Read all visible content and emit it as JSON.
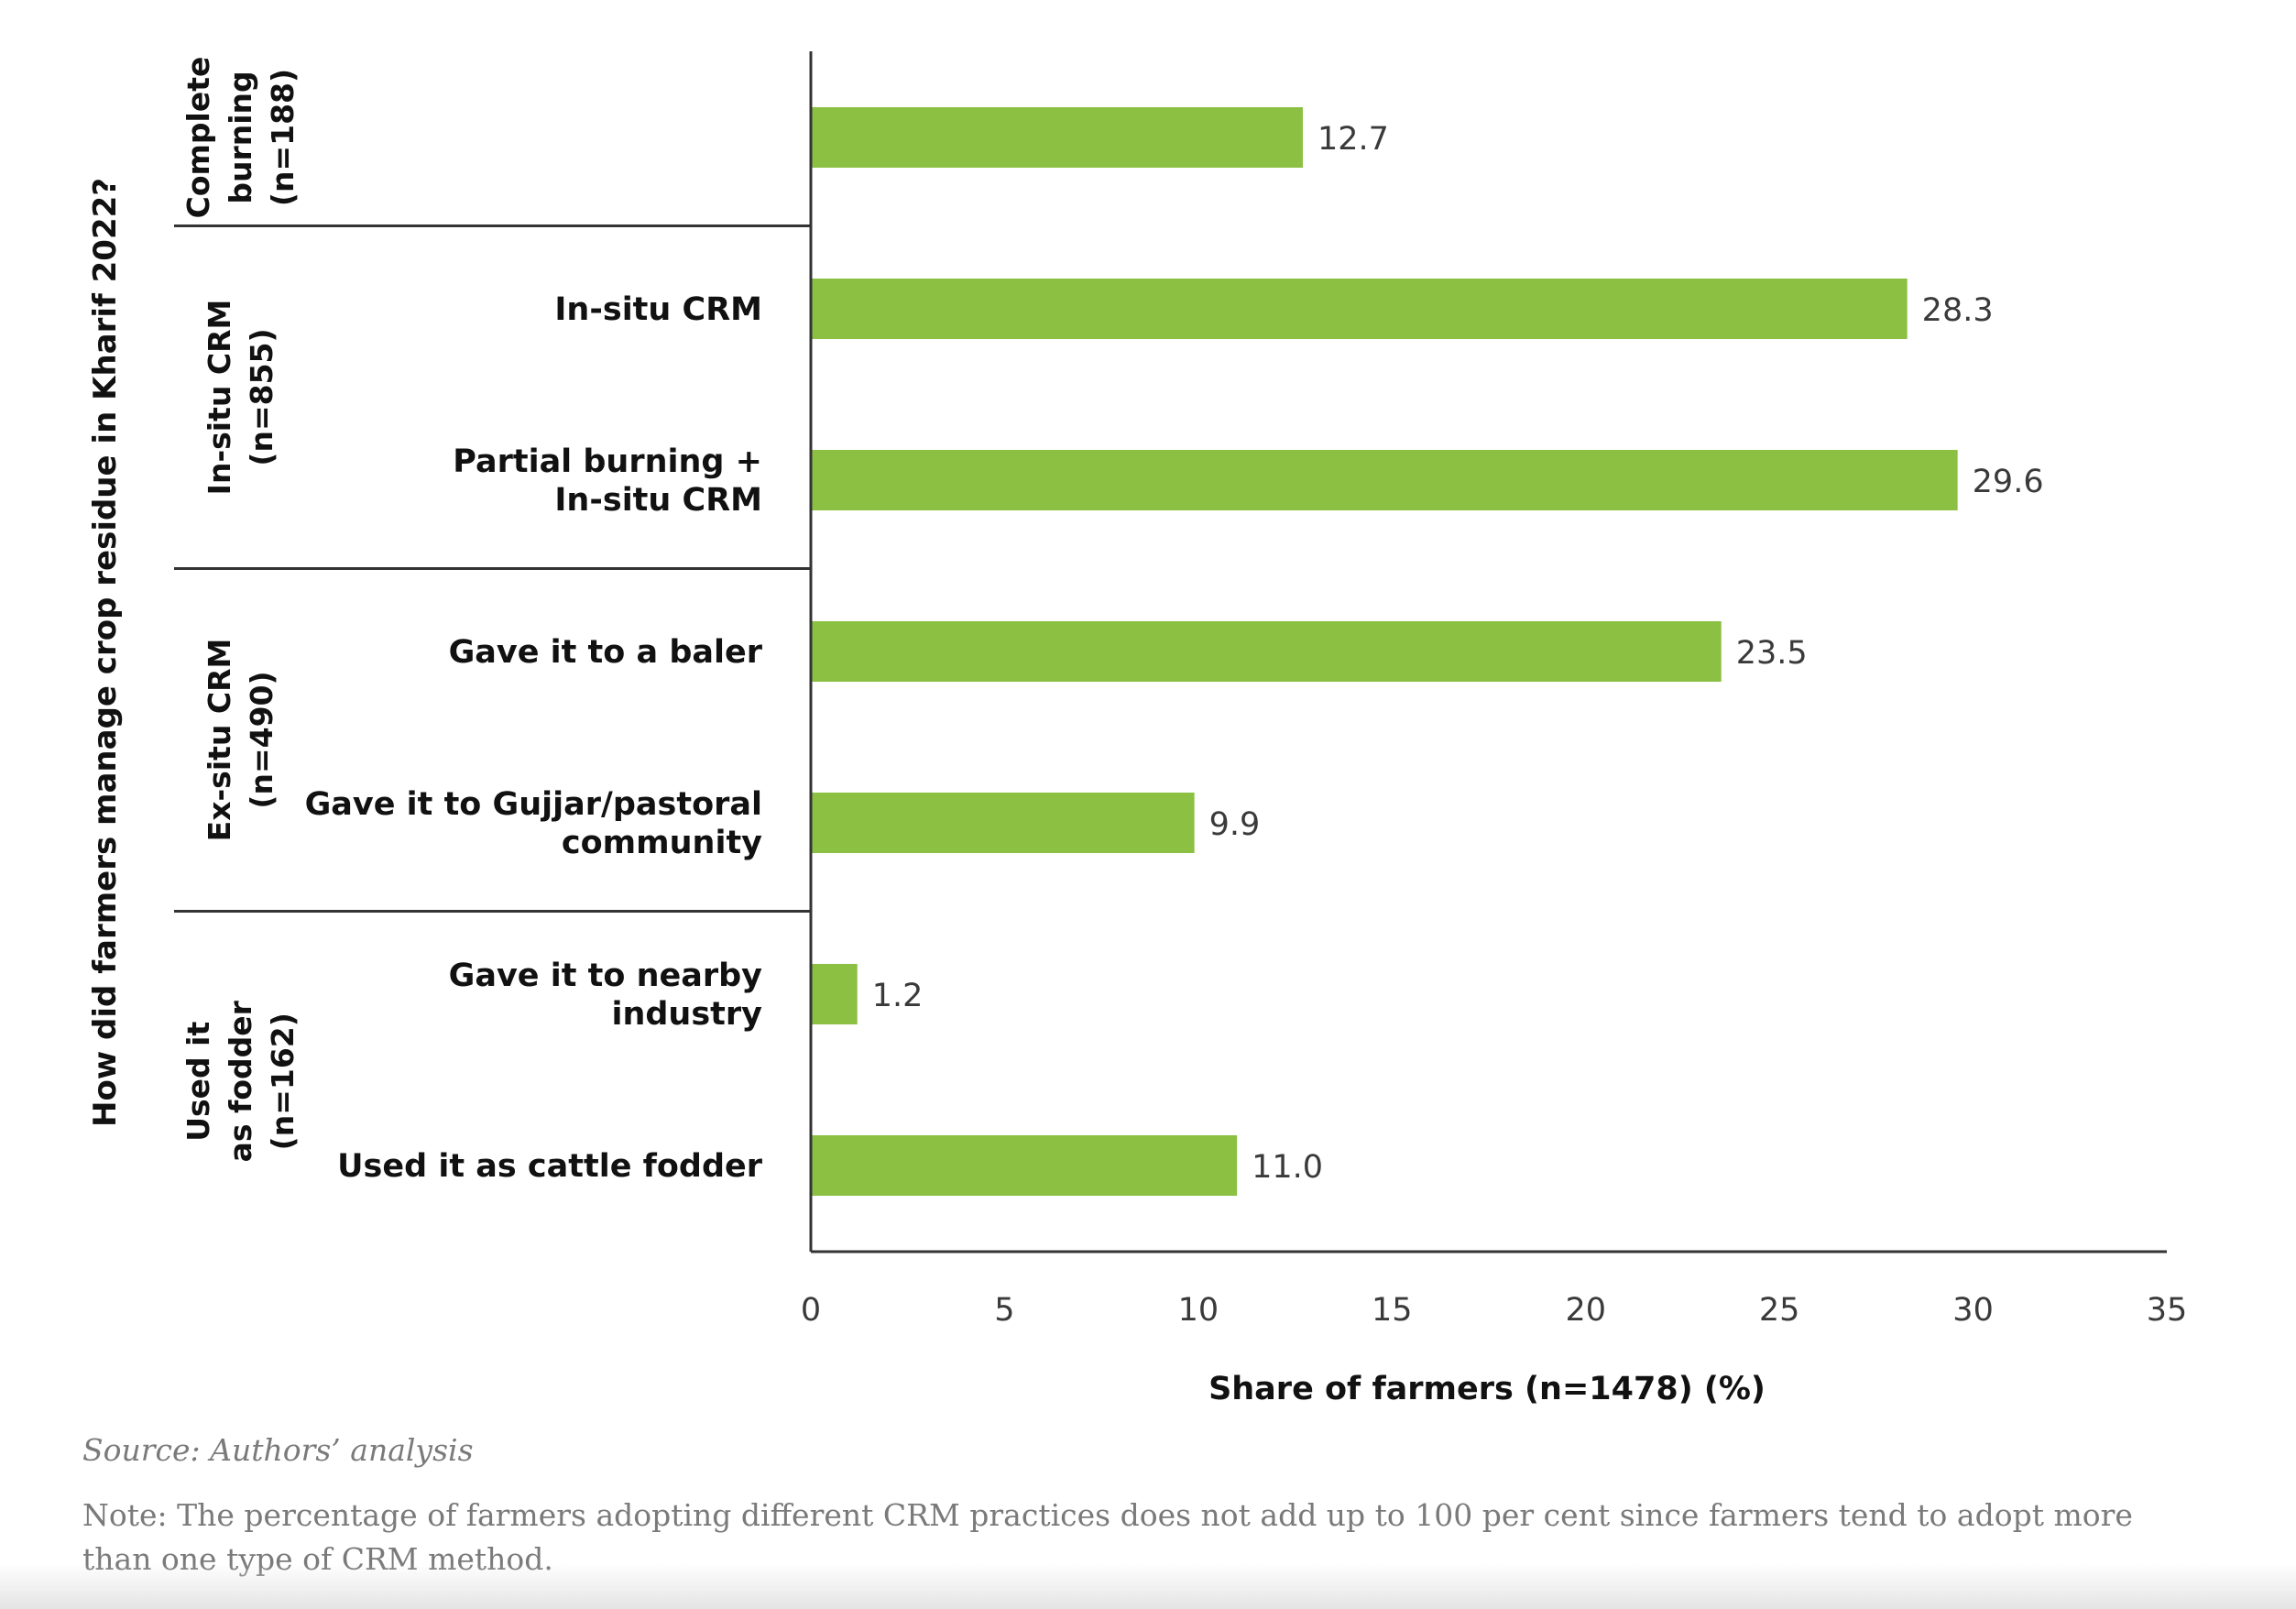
{
  "chart_data": {
    "type": "bar",
    "orientation": "horizontal",
    "ylabel": "How did farmers manage crop residue in Kharif 2022?",
    "xlabel": "Share of farmers (n=1478) (%)",
    "xlim": [
      0,
      35
    ],
    "xticks": [
      "0",
      "5",
      "10",
      "15",
      "20",
      "25",
      "30",
      "35"
    ],
    "grid": false,
    "bar_color": "#8bc043",
    "groups": [
      {
        "label_lines": [
          "Complete",
          "burning",
          "(n=188)"
        ],
        "count": 1
      },
      {
        "label_lines": [
          "In-situ CRM",
          "(n=855)"
        ],
        "count": 2
      },
      {
        "label_lines": [
          "Ex-situ CRM",
          "(n=490)"
        ],
        "count": 2
      },
      {
        "label_lines": [
          "Used it",
          "as fodder",
          "(n=162)"
        ],
        "count": 2
      }
    ],
    "categories": [
      {
        "lines": [
          ""
        ],
        "value": 12.7,
        "label": "12.7"
      },
      {
        "lines": [
          "In-situ CRM"
        ],
        "value": 28.3,
        "label": "28.3"
      },
      {
        "lines": [
          "Partial burning +",
          "In-situ CRM"
        ],
        "value": 29.6,
        "label": "29.6"
      },
      {
        "lines": [
          "Gave it to a baler"
        ],
        "value": 23.5,
        "label": "23.5"
      },
      {
        "lines": [
          "Gave it to Gujjar/pastoral",
          "community"
        ],
        "value": 9.9,
        "label": "9.9"
      },
      {
        "lines": [
          "Gave it to nearby",
          "industry"
        ],
        "value": 1.2,
        "label": "1.2"
      },
      {
        "lines": [
          "Used it as cattle fodder"
        ],
        "value": 11.0,
        "label": "11.0"
      }
    ]
  },
  "footer": {
    "source": "Source: Authors’ analysis",
    "note": "Note: The percentage of farmers adopting different CRM practices does not add up to 100 per cent since farmers tend to adopt more than one type of CRM method."
  }
}
